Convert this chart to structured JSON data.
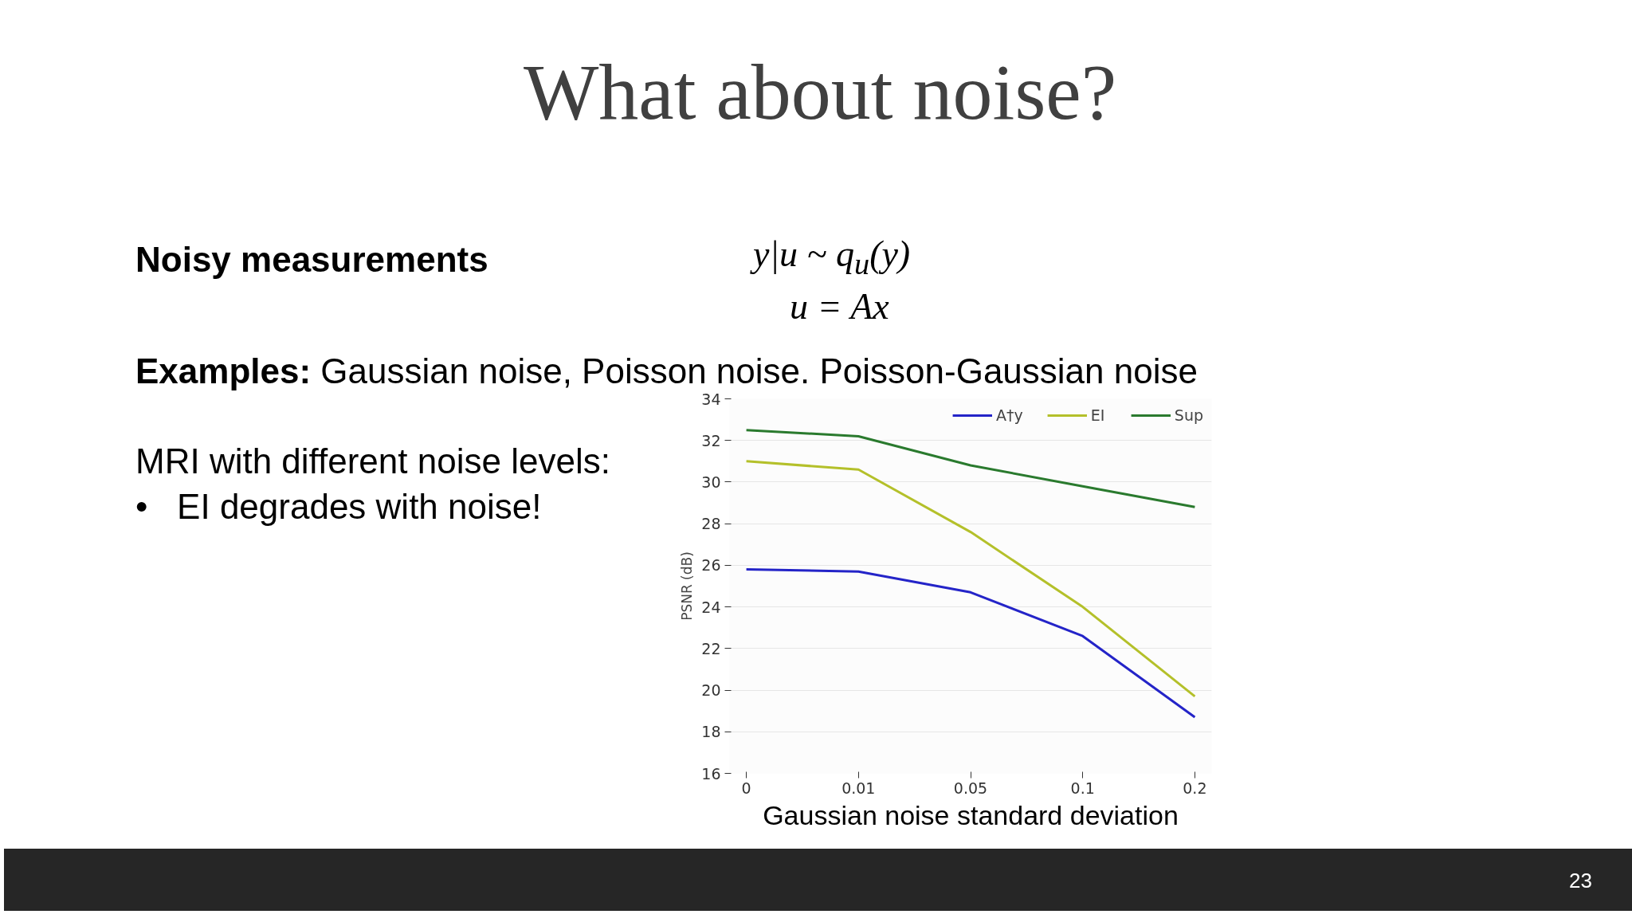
{
  "chart_data": {
    "type": "line",
    "title": "What about noise?",
    "xlabel": "Gaussian noise standard deviation",
    "ylabel": "PSNR (dB)",
    "categories": [
      "0",
      "0.01",
      "0.05",
      "0.1",
      "0.2"
    ],
    "series": [
      {
        "name": "A†y",
        "color": "#2424c8",
        "values": [
          25.8,
          25.7,
          24.7,
          22.6,
          18.7
        ]
      },
      {
        "name": "EI",
        "color": "#b4c02a",
        "values": [
          31.0,
          30.6,
          27.6,
          24.0,
          19.7
        ]
      },
      {
        "name": "Sup",
        "color": "#2a7a2e",
        "values": [
          32.5,
          32.2,
          30.8,
          29.8,
          28.8
        ]
      }
    ],
    "ylim": [
      16,
      34
    ],
    "yticks": [
      16,
      18,
      20,
      22,
      24,
      26,
      28,
      30,
      32,
      34
    ],
    "grid": "y",
    "legend": "top right",
    "line_style": "solid",
    "annotations": [
      "Noisy measurements",
      "y|u ~ q$_{u}$(y)",
      "u = Ax",
      "Examples: Gaussian noise, Poisson noise. Poisson-Gaussian noise",
      "MRI with different noise levels:",
      "•   EI degrades with noise!",
      "23"
    ]
  }
}
